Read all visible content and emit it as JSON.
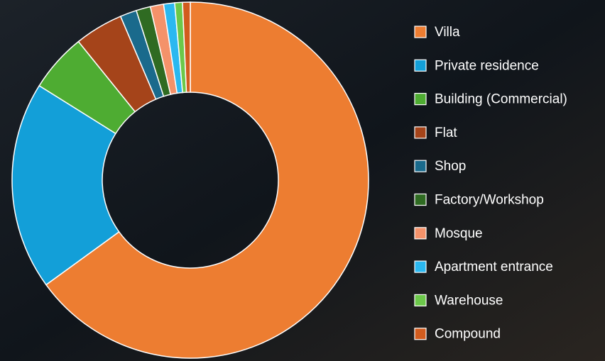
{
  "chart_data": {
    "type": "donut",
    "categories": [
      "Villa",
      "Private residence",
      "Building (Commercial)",
      "Flat",
      "Shop",
      "Factory/Workshop",
      "Mosque",
      "Apartment entrance",
      "Warehouse",
      "Compound"
    ],
    "values": [
      65,
      18.9,
      5.3,
      4.4,
      1.5,
      1.3,
      1.2,
      1.0,
      0.7,
      0.7
    ],
    "colors": [
      "#ed7d31",
      "#139fd8",
      "#4eac32",
      "#a5441a",
      "#1a6a8c",
      "#2f6b22",
      "#f4926a",
      "#2bb8f0",
      "#6cc84a",
      "#d25c1e"
    ],
    "legend": "right"
  }
}
